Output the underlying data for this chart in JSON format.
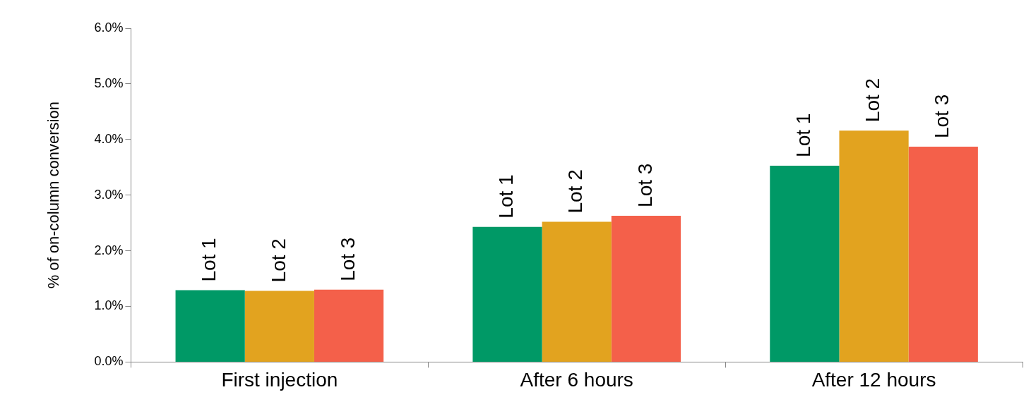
{
  "chart_data": {
    "type": "bar",
    "ylabel": "% of on-column conversion",
    "categories": [
      "First injection",
      "After 6 hours",
      "After 12 hours"
    ],
    "series": [
      {
        "name": "Lot 1",
        "color": "#009966",
        "values": [
          1.29,
          2.43,
          3.53
        ]
      },
      {
        "name": "Lot 2",
        "color": "#e2a31f",
        "values": [
          1.28,
          2.52,
          4.16
        ]
      },
      {
        "name": "Lot 3",
        "color": "#f4604a",
        "values": [
          1.3,
          2.63,
          3.87
        ]
      }
    ],
    "ylim": [
      0,
      6
    ],
    "yticks": [
      {
        "value": 0,
        "label": "0.0%"
      },
      {
        "value": 1,
        "label": "1.0%"
      },
      {
        "value": 2,
        "label": "2.0%"
      },
      {
        "value": 3,
        "label": "3.0%"
      },
      {
        "value": 4,
        "label": "4.0%"
      },
      {
        "value": 5,
        "label": "5.0%"
      },
      {
        "value": 6,
        "label": "6.0%"
      }
    ],
    "grid": false,
    "legend": false
  }
}
